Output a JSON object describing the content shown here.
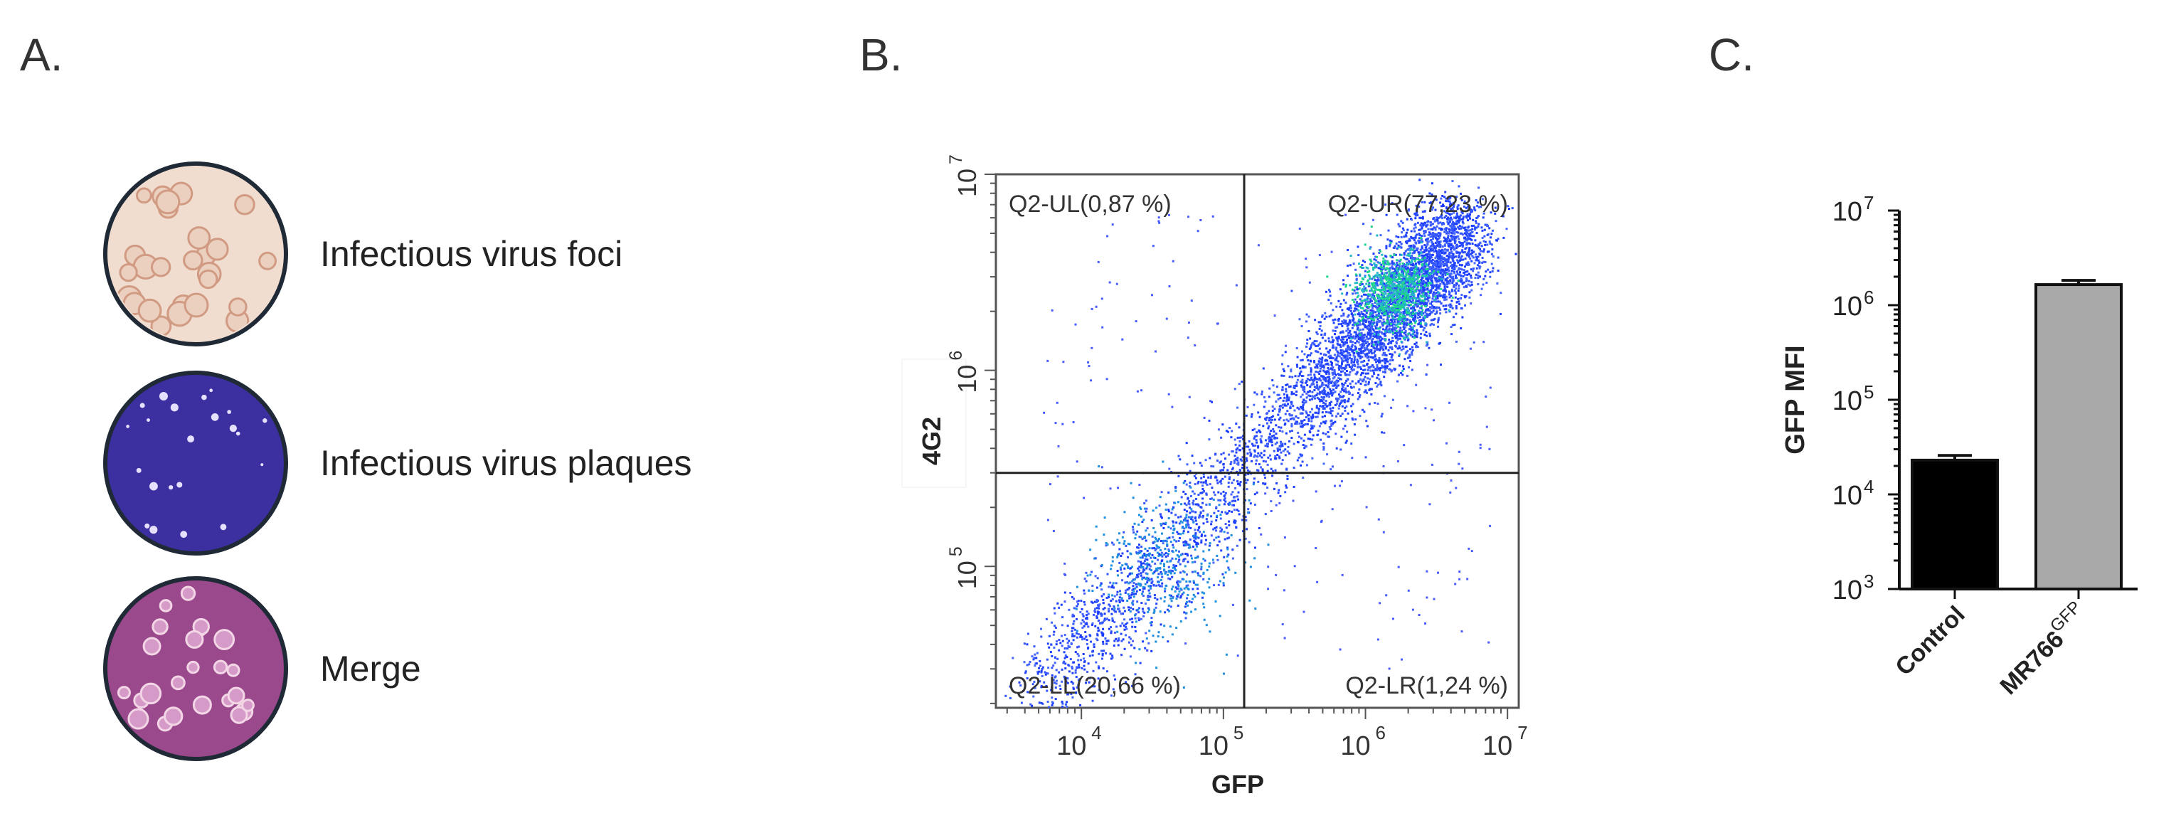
{
  "panels": {
    "a": "A.",
    "b": "B.",
    "c": "C."
  },
  "dishes": [
    {
      "label": "Infectious virus foci",
      "stain": "peach"
    },
    {
      "label": "Infectious virus plaques",
      "stain": "purple"
    },
    {
      "label": "Merge",
      "stain": "magenta"
    }
  ],
  "colors": {
    "dish_rim": "#1f2a36",
    "foci_bg": "#f1ddcf",
    "foci_spot": "#d19a82",
    "plaque_bg": "#3c2fa0",
    "merge_bg": "#9a4a8c",
    "bar_control": "#000000",
    "bar_mr766": "#a9a9a9",
    "flow_dots": "#2233ff"
  },
  "chart_data": [
    {
      "type": "scatter",
      "title": "",
      "xlabel": "GFP",
      "ylabel": "4G2",
      "xscale": "log",
      "yscale": "log",
      "xlim": [
        2500,
        12000000
      ],
      "ylim": [
        19000,
        10000000
      ],
      "x_ticks": [
        {
          "value": 10000,
          "base": "10",
          "exp": "4"
        },
        {
          "value": 100000,
          "base": "10",
          "exp": "5"
        },
        {
          "value": 1000000,
          "base": "10",
          "exp": "6"
        },
        {
          "value": 10000000,
          "base": "10",
          "exp": "7"
        }
      ],
      "y_ticks": [
        {
          "value": 100000,
          "base": "10",
          "exp": "5"
        },
        {
          "value": 1000000,
          "base": "10",
          "exp": "6"
        },
        {
          "value": 10000000,
          "base": "10",
          "exp": "7"
        }
      ],
      "gate": {
        "x": 140000,
        "y": 300000
      },
      "quadrants": [
        {
          "label": "Q2-UL(0,87 %)",
          "position": "top-left"
        },
        {
          "label": "Q2-UR(77,23 %)",
          "position": "top-right"
        },
        {
          "label": "Q2-LL(20,66 %)",
          "position": "bottom-left"
        },
        {
          "label": "Q2-LR(1,24 %)",
          "position": "bottom-right"
        }
      ]
    },
    {
      "type": "bar",
      "title": "",
      "ylabel": "GFP MFI",
      "yscale": "log",
      "ylim": [
        1000,
        10000000
      ],
      "y_ticks": [
        {
          "value": 1000,
          "base": "10",
          "exp": "3"
        },
        {
          "value": 10000,
          "base": "10",
          "exp": "4"
        },
        {
          "value": 100000,
          "base": "10",
          "exp": "5"
        },
        {
          "value": 1000000,
          "base": "10",
          "exp": "6"
        },
        {
          "value": 10000000,
          "base": "10",
          "exp": "7"
        }
      ],
      "categories": [
        {
          "name": "Control",
          "sup": ""
        },
        {
          "name": "MR766",
          "sup": "GFP"
        }
      ],
      "values": [
        23000,
        1650000
      ],
      "errors": [
        2800,
        180000
      ]
    }
  ]
}
